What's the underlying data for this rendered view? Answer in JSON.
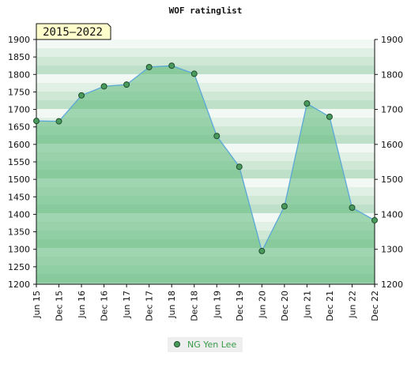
{
  "chart_data": {
    "type": "area",
    "title": "WOF ratinglist",
    "period_label": "2015–2022",
    "categories": [
      "Jun 15",
      "Dec 15",
      "Jun 16",
      "Dec 16",
      "Jun 17",
      "Dec 17",
      "Jun 18",
      "Dec 18",
      "Jun 19",
      "Dec 19",
      "Jun 20",
      "Dec 20",
      "Jun 21",
      "Dec 21",
      "Jun 22",
      "Dec 22"
    ],
    "series": [
      {
        "name": "NG Yen Lee",
        "values": [
          1667,
          1666,
          1740,
          1766,
          1771,
          1821,
          1825,
          1802,
          1624,
          1536,
          1295,
          1423,
          1717,
          1679,
          1419,
          1383
        ]
      }
    ],
    "ylim": [
      1200,
      1900
    ],
    "yticks": [
      1200,
      1250,
      1300,
      1350,
      1400,
      1450,
      1500,
      1550,
      1600,
      1650,
      1700,
      1750,
      1800,
      1850,
      1900
    ],
    "yticks_right": [
      1200,
      1300,
      1400,
      1500,
      1600,
      1700,
      1800,
      1900
    ],
    "legend_position": "bottom-center",
    "colors": {
      "line": "#5aa8d8",
      "area": "#5db87a",
      "marker": "#4a9a5e",
      "legend_text": "#3a9a4a",
      "tag_bg": "#ffffcc"
    }
  }
}
